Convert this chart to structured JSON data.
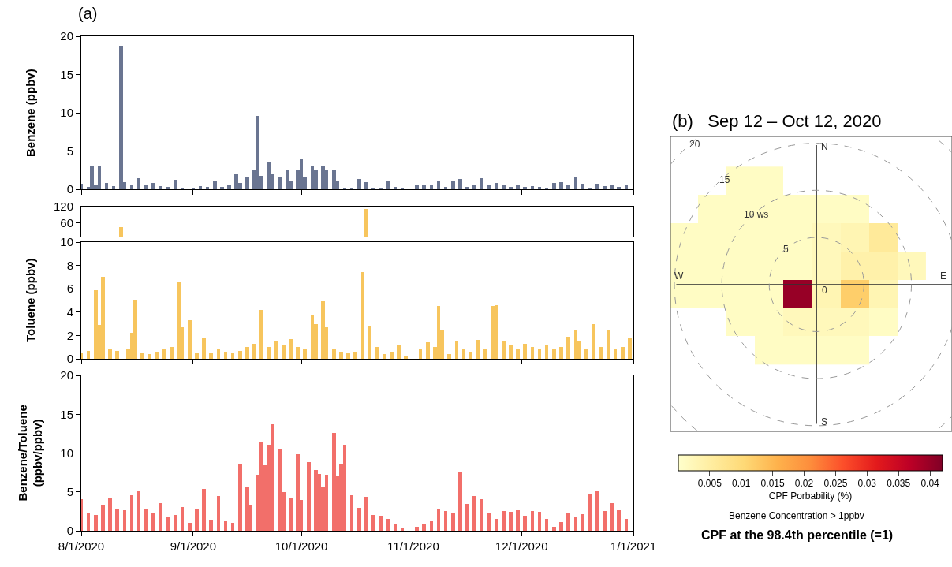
{
  "chart_data": [
    {
      "type": "bar",
      "title": "(a)",
      "ylabel": "Benzene (ppbv)",
      "tick_labels": "y",
      "xlim": [
        "2020-08-01",
        "2021-01-01"
      ],
      "ylim": [
        0,
        20
      ],
      "yticks": [
        0,
        5,
        10,
        15,
        20
      ],
      "xticks": [
        {
          "value": "2020-08-01",
          "label": null
        },
        {
          "value": "2020-09-01",
          "label": null
        },
        {
          "value": "2020-10-01",
          "label": null
        },
        {
          "value": "2020-11-01",
          "label": null
        },
        {
          "value": "2020-12-01",
          "label": null
        },
        {
          "value": "2021-01-01",
          "label": null
        }
      ],
      "x": [
        "2020-08-01",
        "2020-08-03",
        "2020-08-04",
        "2020-08-05",
        "2020-08-06",
        "2020-08-08",
        "2020-08-10",
        "2020-08-12",
        "2020-08-13",
        "2020-08-15",
        "2020-08-17",
        "2020-08-19",
        "2020-08-21",
        "2020-08-23",
        "2020-08-25",
        "2020-08-27",
        "2020-08-29",
        "2020-09-01",
        "2020-09-03",
        "2020-09-05",
        "2020-09-07",
        "2020-09-09",
        "2020-09-11",
        "2020-09-13",
        "2020-09-14",
        "2020-09-16",
        "2020-09-18",
        "2020-09-19",
        "2020-09-20",
        "2020-09-22",
        "2020-09-23",
        "2020-09-25",
        "2020-09-27",
        "2020-09-28",
        "2020-09-30",
        "2020-10-01",
        "2020-10-02",
        "2020-10-04",
        "2020-10-05",
        "2020-10-07",
        "2020-10-08",
        "2020-10-10",
        "2020-10-11",
        "2020-10-13",
        "2020-10-15",
        "2020-10-17",
        "2020-10-19",
        "2020-10-21",
        "2020-10-23",
        "2020-10-25",
        "2020-10-27",
        "2020-10-29",
        "2020-10-31",
        "2020-11-02",
        "2020-11-04",
        "2020-11-06",
        "2020-11-08",
        "2020-11-10",
        "2020-11-12",
        "2020-11-14",
        "2020-11-16",
        "2020-11-18",
        "2020-11-20",
        "2020-11-22",
        "2020-11-24",
        "2020-11-26",
        "2020-11-28",
        "2020-11-30",
        "2020-12-02",
        "2020-12-04",
        "2020-12-06",
        "2020-12-08",
        "2020-12-10",
        "2020-12-12",
        "2020-12-14",
        "2020-12-16",
        "2020-12-18",
        "2020-12-20",
        "2020-12-22",
        "2020-12-24",
        "2020-12-26",
        "2020-12-28",
        "2020-12-30"
      ],
      "series": [
        {
          "color": "#6a7591",
          "values": [
            0.7,
            0.3,
            3.1,
            0.5,
            3.0,
            0.8,
            0.4,
            18.8,
            0.9,
            0.6,
            1.4,
            0.6,
            0.8,
            0.4,
            0.3,
            1.2,
            0.2,
            0.2,
            0.4,
            0.3,
            1.0,
            0.3,
            0.5,
            2.0,
            0.8,
            1.5,
            2.5,
            9.6,
            1.8,
            3.6,
            2.0,
            1.5,
            2.5,
            1.0,
            2.5,
            4.0,
            1.5,
            3.0,
            2.5,
            3.0,
            2.5,
            2.5,
            1.0,
            0.1,
            0.2,
            1.3,
            0.9,
            0.2,
            0.2,
            1.1,
            0.3,
            0.1,
            null,
            0.5,
            0.5,
            0.6,
            1.0,
            0.3,
            1.0,
            1.3,
            0.3,
            0.5,
            1.4,
            0.5,
            0.8,
            0.6,
            0.3,
            0.5,
            0.3,
            0.4,
            0.3,
            0.2,
            0.8,
            0.9,
            0.6,
            1.5,
            0.7,
            0.2,
            0.7,
            0.4,
            0.5,
            0.3,
            0.6
          ]
        }
      ]
    },
    {
      "type": "bar",
      "tick_labels": "y",
      "xlim": [
        "2020-08-01",
        "2021-01-01"
      ],
      "ylim": [
        10,
        120
      ],
      "yticks": [
        60,
        120
      ],
      "x": [
        "2020-08-12",
        "2020-10-19"
      ],
      "series": [
        {
          "color": "#f7c55d",
          "values": [
            44,
            110
          ]
        }
      ]
    },
    {
      "type": "bar",
      "ylabel": "Toluene (ppbv)",
      "tick_labels": "y",
      "xlim": [
        "2020-08-01",
        "2021-01-01"
      ],
      "ylim": [
        0,
        10
      ],
      "yticks": [
        0,
        2,
        4,
        6,
        8,
        10
      ],
      "xticks": [
        {
          "value": "2020-08-01",
          "label": null
        },
        {
          "value": "2020-09-01",
          "label": null
        },
        {
          "value": "2020-10-01",
          "label": null
        },
        {
          "value": "2020-11-01",
          "label": null
        },
        {
          "value": "2020-12-01",
          "label": null
        },
        {
          "value": "2021-01-01",
          "label": null
        }
      ],
      "x": [
        "2020-08-01",
        "2020-08-03",
        "2020-08-05",
        "2020-08-06",
        "2020-08-07",
        "2020-08-09",
        "2020-08-11",
        "2020-08-12",
        "2020-08-14",
        "2020-08-15",
        "2020-08-16",
        "2020-08-18",
        "2020-08-20",
        "2020-08-22",
        "2020-08-24",
        "2020-08-26",
        "2020-08-28",
        "2020-08-29",
        "2020-08-31",
        "2020-09-02",
        "2020-09-04",
        "2020-09-06",
        "2020-09-08",
        "2020-09-10",
        "2020-09-12",
        "2020-09-14",
        "2020-09-16",
        "2020-09-18",
        "2020-09-20",
        "2020-09-22",
        "2020-09-24",
        "2020-09-26",
        "2020-09-28",
        "2020-09-30",
        "2020-10-02",
        "2020-10-04",
        "2020-10-05",
        "2020-10-07",
        "2020-10-08",
        "2020-10-10",
        "2020-10-12",
        "2020-10-14",
        "2020-10-16",
        "2020-10-18",
        "2020-10-19",
        "2020-10-20",
        "2020-10-22",
        "2020-10-24",
        "2020-10-26",
        "2020-10-28",
        "2020-10-30",
        "2020-11-01",
        "2020-11-03",
        "2020-11-05",
        "2020-11-07",
        "2020-11-08",
        "2020-11-09",
        "2020-11-11",
        "2020-11-13",
        "2020-11-15",
        "2020-11-17",
        "2020-11-19",
        "2020-11-21",
        "2020-11-23",
        "2020-11-24",
        "2020-11-26",
        "2020-11-28",
        "2020-11-30",
        "2020-12-02",
        "2020-12-04",
        "2020-12-06",
        "2020-12-08",
        "2020-12-10",
        "2020-12-12",
        "2020-12-14",
        "2020-12-16",
        "2020-12-17",
        "2020-12-19",
        "2020-12-21",
        "2020-12-23",
        "2020-12-25",
        "2020-12-27",
        "2020-12-29",
        "2020-12-31"
      ],
      "series": [
        {
          "color": "#f7c55d",
          "values": [
            0.5,
            0.7,
            5.9,
            2.9,
            7.0,
            0.8,
            0.7,
            null,
            0.8,
            2.2,
            5.0,
            0.5,
            0.4,
            0.6,
            0.8,
            1.0,
            6.6,
            2.7,
            3.3,
            0.5,
            1.8,
            0.5,
            0.8,
            0.6,
            0.5,
            0.7,
            1.0,
            1.3,
            4.2,
            1.0,
            1.5,
            1.2,
            1.7,
            1.0,
            0.9,
            3.8,
            3.0,
            4.9,
            2.7,
            0.8,
            0.6,
            0.5,
            0.6,
            7.4,
            null,
            2.8,
            1.0,
            0.4,
            0.6,
            1.2,
            0.3,
            null,
            0.8,
            1.4,
            1.0,
            4.5,
            2.4,
            0.4,
            1.5,
            0.8,
            0.6,
            1.6,
            0.8,
            4.5,
            4.6,
            1.5,
            1.2,
            0.8,
            1.3,
            1.0,
            0.9,
            1.2,
            0.8,
            1.0,
            1.9,
            2.4,
            1.5,
            0.8,
            3.0,
            1.0,
            2.4,
            0.9,
            1.0,
            1.8
          ]
        }
      ]
    },
    {
      "type": "bar",
      "ylabel": "Benzene/Toluene\n(ppbv/ppbv)",
      "xlim": [
        "2020-08-01",
        "2021-01-01"
      ],
      "ylim": [
        0,
        20
      ],
      "yticks": [
        0,
        5,
        10,
        15,
        20
      ],
      "xticks": [
        {
          "value": "2020-08-01",
          "label": "8/1/2020"
        },
        {
          "value": "2020-09-01",
          "label": "9/1/2020"
        },
        {
          "value": "2020-10-01",
          "label": "10/1/2020"
        },
        {
          "value": "2020-11-01",
          "label": "11/1/2020"
        },
        {
          "value": "2020-12-01",
          "label": "12/1/2020"
        },
        {
          "value": "2021-01-01",
          "label": "1/1/2021"
        }
      ],
      "x": [
        "2020-08-01",
        "2020-08-03",
        "2020-08-05",
        "2020-08-07",
        "2020-08-09",
        "2020-08-11",
        "2020-08-13",
        "2020-08-15",
        "2020-08-17",
        "2020-08-19",
        "2020-08-21",
        "2020-08-23",
        "2020-08-25",
        "2020-08-27",
        "2020-08-29",
        "2020-08-31",
        "2020-09-02",
        "2020-09-04",
        "2020-09-06",
        "2020-09-08",
        "2020-09-10",
        "2020-09-12",
        "2020-09-14",
        "2020-09-16",
        "2020-09-17",
        "2020-09-19",
        "2020-09-20",
        "2020-09-21",
        "2020-09-22",
        "2020-09-23",
        "2020-09-25",
        "2020-09-26",
        "2020-09-28",
        "2020-09-30",
        "2020-10-01",
        "2020-10-03",
        "2020-10-05",
        "2020-10-06",
        "2020-10-07",
        "2020-10-08",
        "2020-10-10",
        "2020-10-11",
        "2020-10-12",
        "2020-10-13",
        "2020-10-15",
        "2020-10-17",
        "2020-10-19",
        "2020-10-21",
        "2020-10-23",
        "2020-10-25",
        "2020-10-27",
        "2020-10-29",
        "2020-10-31",
        "2020-11-02",
        "2020-11-04",
        "2020-11-06",
        "2020-11-08",
        "2020-11-10",
        "2020-11-12",
        "2020-11-14",
        "2020-11-16",
        "2020-11-18",
        "2020-11-20",
        "2020-11-22",
        "2020-11-24",
        "2020-11-26",
        "2020-11-28",
        "2020-11-30",
        "2020-12-02",
        "2020-12-04",
        "2020-12-06",
        "2020-12-08",
        "2020-12-10",
        "2020-12-12",
        "2020-12-14",
        "2020-12-16",
        "2020-12-18",
        "2020-12-20",
        "2020-12-22",
        "2020-12-24",
        "2020-12-26",
        "2020-12-28",
        "2020-12-30"
      ],
      "series": [
        {
          "color": "#f26f6a",
          "values": [
            4.1,
            2.3,
            2.0,
            3.4,
            4.3,
            2.7,
            2.6,
            4.6,
            5.2,
            2.7,
            2.3,
            3.6,
            1.8,
            2.0,
            3.0,
            1.0,
            2.8,
            5.4,
            1.3,
            4.5,
            1.2,
            1.0,
            8.6,
            5.6,
            3.4,
            7.2,
            11.4,
            8.4,
            11.1,
            13.7,
            10.6,
            5.0,
            4.2,
            9.8,
            4.0,
            8.8,
            7.8,
            7.3,
            5.6,
            7.2,
            12.6,
            7.0,
            8.6,
            11.1,
            4.6,
            2.9,
            4.4,
            2.0,
            1.9,
            1.5,
            0.8,
            0.4,
            null,
            0.5,
            0.9,
            1.2,
            2.8,
            2.5,
            2.3,
            7.5,
            3.5,
            4.5,
            4.1,
            2.3,
            1.5,
            2.5,
            2.4,
            2.6,
            1.9,
            2.5,
            2.4,
            1.5,
            0.5,
            1.1,
            2.3,
            1.8,
            2.1,
            4.7,
            5.1,
            2.5,
            3.6,
            2.6,
            1.5
          ]
        }
      ]
    },
    {
      "type": "heatmap",
      "title": "(b)   Sep 12 – Oct 12, 2020",
      "clabel": "CPF Porbability (%)",
      "clim": [
        0,
        0.042
      ],
      "cticks": [
        0.005,
        0.01,
        0.015,
        0.02,
        0.025,
        0.03,
        0.035,
        0.04
      ],
      "categories": [
        null,
        null,
        null,
        null,
        null,
        null,
        null,
        null,
        null
      ],
      "y_categories": [
        null,
        null,
        null,
        null,
        null,
        null,
        null
      ],
      "cells": [
        [
          null,
          null,
          0.001,
          0.001,
          null,
          null,
          null,
          null,
          null
        ],
        [
          null,
          0.001,
          0.001,
          0.001,
          0.001,
          0.001,
          0.001,
          null,
          null
        ],
        [
          0.001,
          0.001,
          0.001,
          0.001,
          0.001,
          0.002,
          0.003,
          0.006,
          null
        ],
        [
          0.001,
          0.001,
          0.001,
          0.001,
          0.001,
          0.002,
          0.004,
          0.004,
          0.002
        ],
        [
          0.001,
          0.001,
          0.001,
          0.001,
          0.04,
          0.003,
          0.012,
          0.003,
          null
        ],
        [
          null,
          null,
          0.001,
          0.001,
          0.002,
          0.002,
          0.002,
          0.001,
          null
        ],
        [
          null,
          null,
          null,
          0.001,
          0.001,
          0.001,
          0.001,
          null,
          null
        ]
      ],
      "annotations": [
        "N",
        "E",
        "S",
        "W",
        "0",
        "5",
        "10 ws",
        "15",
        "20",
        "Benzene Concentration > 1ppbv",
        "CPF at the 98.4th percentile (=1)"
      ]
    }
  ]
}
